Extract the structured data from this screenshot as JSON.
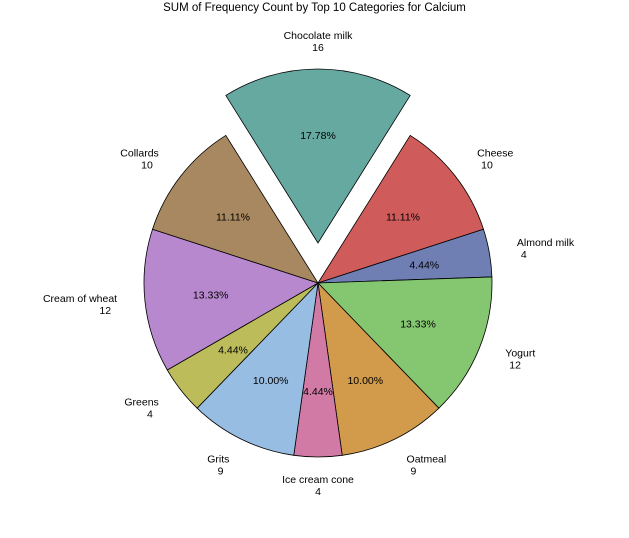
{
  "chart_data": {
    "type": "pie",
    "title": "SUM of Frequency Count by Top 10 Categories for Calcium",
    "slices": [
      {
        "label": "Chocolate milk",
        "value": 16,
        "percent": "17.78%",
        "color": "#66a9a1",
        "exploded": true
      },
      {
        "label": "Cheese",
        "value": 10,
        "percent": "11.11%",
        "color": "#d05b5b"
      },
      {
        "label": "Almond milk",
        "value": 4,
        "percent": "4.44%",
        "color": "#6f7eb3"
      },
      {
        "label": "Yogurt",
        "value": 12,
        "percent": "13.33%",
        "color": "#85c771"
      },
      {
        "label": "Oatmeal",
        "value": 9,
        "percent": "10.00%",
        "color": "#d29a4b"
      },
      {
        "label": "Ice cream cone",
        "value": 4,
        "percent": "4.44%",
        "color": "#d07aa5"
      },
      {
        "label": "Grits",
        "value": 9,
        "percent": "10.00%",
        "color": "#97bde3"
      },
      {
        "label": "Greens",
        "value": 4,
        "percent": "4.44%",
        "color": "#bcbc5b"
      },
      {
        "label": "Cream of wheat",
        "value": 12,
        "percent": "13.33%",
        "color": "#b888cf"
      },
      {
        "label": "Collards",
        "value": 10,
        "percent": "11.11%",
        "color": "#a88860"
      }
    ]
  }
}
